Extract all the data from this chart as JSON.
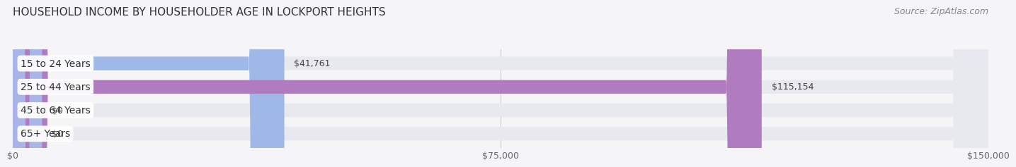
{
  "title": "HOUSEHOLD INCOME BY HOUSEHOLDER AGE IN LOCKPORT HEIGHTS",
  "source": "Source: ZipAtlas.com",
  "categories": [
    "15 to 24 Years",
    "25 to 44 Years",
    "45 to 64 Years",
    "65+ Years"
  ],
  "values": [
    41761,
    115154,
    0,
    0
  ],
  "bar_colors": [
    "#9eb8e8",
    "#b07bbf",
    "#5ec8c0",
    "#a9b4e8"
  ],
  "bar_bg_color": "#e8e8ef",
  "xlim": [
    0,
    150000
  ],
  "xtick_labels": [
    "$0",
    "$75,000",
    "$150,000"
  ],
  "xtick_values": [
    0,
    75000,
    150000
  ],
  "title_fontsize": 11,
  "source_fontsize": 9,
  "label_fontsize": 10,
  "value_fontsize": 9,
  "background_color": "#f5f5f8"
}
